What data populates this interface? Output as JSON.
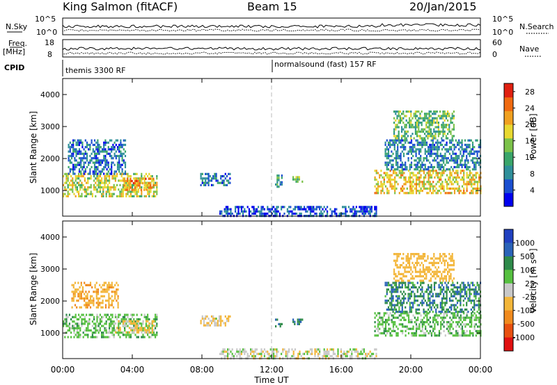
{
  "header": {
    "station": "King Salmon (fitACF)",
    "beam": "Beam 15",
    "date": "20/Jan/2015"
  },
  "strips": {
    "nsky_label": "N.Sky",
    "nsky_ticks": [
      "10^5",
      "10^0"
    ],
    "nsearch_label": "N.Search",
    "nsearch_ticks": [
      "10^5",
      "10^0"
    ],
    "freq_label": "Freq.",
    "freq_unit": "[MHz]",
    "freq_ticks": [
      "18",
      "8"
    ],
    "nave_label": "Nave",
    "nave_ticks": [
      "60",
      "0"
    ],
    "cpid_label": "CPID",
    "cpid_segments": [
      "themis 3300 RF",
      "normalsound (fast) 157 RF"
    ]
  },
  "colors": {
    "power": [
      "#0000ee",
      "#1a4fd0",
      "#2f8f9a",
      "#3aa56a",
      "#7cc24a",
      "#e8d830",
      "#f0a020",
      "#f06a10",
      "#e02010"
    ],
    "velocity": [
      "#2040c0",
      "#2a63b8",
      "#2e8a4a",
      "#56c040",
      "#c8c8c8",
      "#f3b63a",
      "#f08a1e",
      "#e85010",
      "#e01010"
    ]
  },
  "chart_data": [
    {
      "type": "heatmap",
      "title": "Power",
      "ylabel": "Slant Range [km]",
      "ylim": [
        200,
        4500
      ],
      "xlim": [
        0,
        24
      ],
      "y_ticks": [
        1000,
        2000,
        3000,
        4000
      ],
      "colorbar_label": "Power [dB]",
      "colorbar_ticks": [
        4,
        8,
        12,
        16,
        20,
        24,
        28
      ],
      "colorbar_range": [
        0,
        30
      ],
      "regions": [
        {
          "t0": 0.0,
          "t1": 5.4,
          "r0": 850,
          "r1": 1550,
          "value": 17
        },
        {
          "t0": 0.3,
          "t1": 3.6,
          "r0": 1550,
          "r1": 2600,
          "value": 7
        },
        {
          "t0": 3.5,
          "t1": 5.2,
          "r0": 1000,
          "r1": 1400,
          "value": 22
        },
        {
          "t0": 7.9,
          "t1": 9.6,
          "r0": 1200,
          "r1": 1550,
          "value": 7
        },
        {
          "t0": 12.2,
          "t1": 12.6,
          "r0": 1150,
          "r1": 1500,
          "value": 9
        },
        {
          "t0": 13.2,
          "t1": 13.8,
          "r0": 1250,
          "r1": 1450,
          "value": 12
        },
        {
          "t0": 17.9,
          "t1": 24.0,
          "r0": 900,
          "r1": 1650,
          "value": 19
        },
        {
          "t0": 18.5,
          "t1": 24.0,
          "r0": 1650,
          "r1": 2600,
          "value": 8
        },
        {
          "t0": 19.0,
          "t1": 22.5,
          "r0": 2600,
          "r1": 3500,
          "value": 13
        },
        {
          "t0": 9.0,
          "t1": 18.0,
          "r0": 220,
          "r1": 520,
          "value": 5
        }
      ]
    },
    {
      "type": "heatmap",
      "title": "Velocity",
      "ylabel": "Slant Range [km]",
      "xlabel": "Time UT",
      "ylim": [
        200,
        4500
      ],
      "xlim": [
        0,
        24
      ],
      "y_ticks": [
        1000,
        2000,
        3000,
        4000
      ],
      "x_ticks": [
        "00:00",
        "04:00",
        "08:00",
        "12:00",
        "16:00",
        "20:00",
        "00:00"
      ],
      "colorbar_label": "Velocity [m s⁻¹]",
      "colorbar_ticks": [
        "1000",
        "500",
        "100",
        "25",
        "-25",
        "-100",
        "-500",
        "-1000"
      ],
      "regions": [
        {
          "t0": 0.0,
          "t1": 5.4,
          "r0": 850,
          "r1": 1600,
          "value": 0
        },
        {
          "t0": 0.5,
          "t1": 3.2,
          "r0": 1800,
          "r1": 2600,
          "value": -400
        },
        {
          "t0": 3.0,
          "t1": 5.2,
          "r0": 1000,
          "r1": 1400,
          "value": -120
        },
        {
          "t0": 7.9,
          "t1": 9.6,
          "r0": 1250,
          "r1": 1550,
          "value": -120
        },
        {
          "t0": 12.2,
          "t1": 12.6,
          "r0": 1200,
          "r1": 1450,
          "value": 100
        },
        {
          "t0": 13.2,
          "t1": 13.8,
          "r0": 1250,
          "r1": 1450,
          "value": 100
        },
        {
          "t0": 17.9,
          "t1": 24.0,
          "r0": 900,
          "r1": 1650,
          "value": 0
        },
        {
          "t0": 18.5,
          "t1": 24.0,
          "r0": 1650,
          "r1": 2600,
          "value": 80
        },
        {
          "t0": 19.0,
          "t1": 22.5,
          "r0": 2600,
          "r1": 3500,
          "value": -300
        },
        {
          "t0": 9.0,
          "t1": 18.0,
          "r0": 220,
          "r1": 520,
          "value": -60
        }
      ]
    }
  ]
}
